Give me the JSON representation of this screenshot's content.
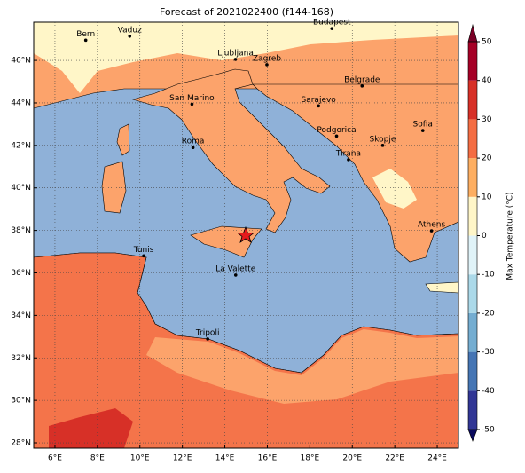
{
  "title": "Forecast of 2021022400 (f144-168)",
  "map": {
    "xlim": [
      5,
      25
    ],
    "ylim": [
      27.75,
      47.8
    ],
    "xticks": [
      {
        "value": 6,
        "label": "6°E"
      },
      {
        "value": 8,
        "label": "8°E"
      },
      {
        "value": 10,
        "label": "10°E"
      },
      {
        "value": 12,
        "label": "12°E"
      },
      {
        "value": 14,
        "label": "14°E"
      },
      {
        "value": 16,
        "label": "16°E"
      },
      {
        "value": 18,
        "label": "18°E"
      },
      {
        "value": 20,
        "label": "20°E"
      },
      {
        "value": 22,
        "label": "22°E"
      },
      {
        "value": 24,
        "label": "24°E"
      }
    ],
    "yticks": [
      {
        "value": 28,
        "label": "28°N"
      },
      {
        "value": 30,
        "label": "30°N"
      },
      {
        "value": 32,
        "label": "32°N"
      },
      {
        "value": 34,
        "label": "34°N"
      },
      {
        "value": 36,
        "label": "36°N"
      },
      {
        "value": 38,
        "label": "38°N"
      },
      {
        "value": 40,
        "label": "40°N"
      },
      {
        "value": 42,
        "label": "42°N"
      },
      {
        "value": 44,
        "label": "44°N"
      },
      {
        "value": 46,
        "label": "46°N"
      }
    ],
    "grid": true,
    "cities": [
      {
        "name": "Bern",
        "lon": 7.45,
        "lat": 46.95
      },
      {
        "name": "Vaduz",
        "lon": 9.52,
        "lat": 47.14
      },
      {
        "name": "Budapest",
        "lon": 19.04,
        "lat": 47.5
      },
      {
        "name": "Ljubljana",
        "lon": 14.5,
        "lat": 46.05
      },
      {
        "name": "Zagreb",
        "lon": 15.98,
        "lat": 45.8
      },
      {
        "name": "Belgrade",
        "lon": 20.46,
        "lat": 44.8
      },
      {
        "name": "San Marino",
        "lon": 12.45,
        "lat": 43.94
      },
      {
        "name": "Sarajevo",
        "lon": 18.41,
        "lat": 43.86
      },
      {
        "name": "Sofia",
        "lon": 23.32,
        "lat": 42.7
      },
      {
        "name": "Roma",
        "lon": 12.5,
        "lat": 41.9
      },
      {
        "name": "Podgorica",
        "lon": 19.26,
        "lat": 42.44
      },
      {
        "name": "Skopje",
        "lon": 21.43,
        "lat": 42.0
      },
      {
        "name": "Tirana",
        "lon": 19.82,
        "lat": 41.33
      },
      {
        "name": "Athens",
        "lon": 23.73,
        "lat": 37.98
      },
      {
        "name": "Tunis",
        "lon": 10.18,
        "lat": 36.8
      },
      {
        "name": "La Valette",
        "lon": 14.51,
        "lat": 35.9
      },
      {
        "name": "Tripoli",
        "lon": 13.19,
        "lat": 32.89
      }
    ]
  },
  "colorbar": {
    "label": "Max Temperature (°C)",
    "lim": [
      -50,
      50
    ],
    "ticks": [
      -50,
      -40,
      -30,
      -20,
      -10,
      0,
      10,
      20,
      30,
      40,
      50
    ],
    "colors": [
      "#313695",
      "#4575b4",
      "#74add1",
      "#abd9e9",
      "#e0f3f8",
      "#fff6c8",
      "#fdae61",
      "#f46d43",
      "#d73027",
      "#a50026"
    ],
    "under_color": "#0b0b5e",
    "over_color": "#7a0026"
  }
}
